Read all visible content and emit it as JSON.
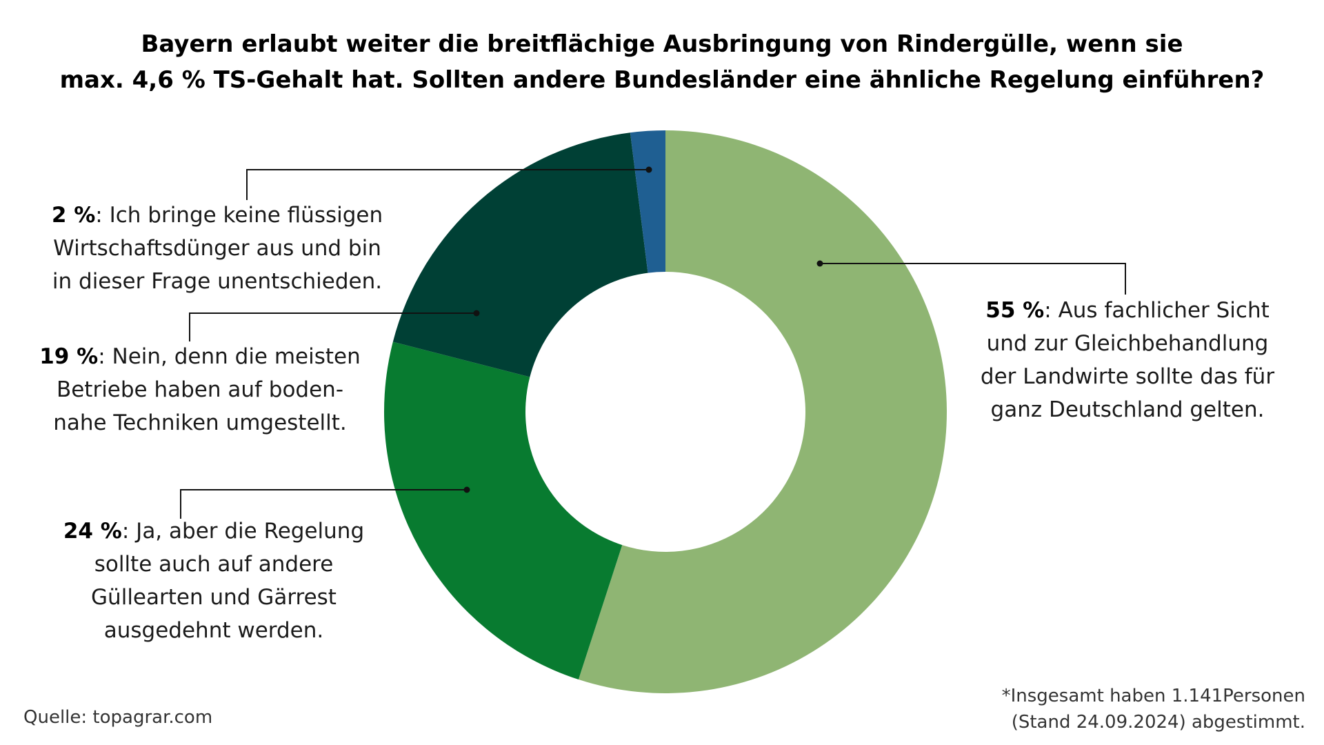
{
  "title": {
    "line1": "Bayern erlaubt weiter die breitflächige Ausbringung von Rindergülle, wenn sie",
    "line2": "max. 4,6 % TS-Gehalt hat. Sollten andere Bundesländer eine ähnliche Regelung einführen?"
  },
  "chart_data": {
    "type": "pie",
    "variant": "donut",
    "title": "Bayern erlaubt weiter die breitflächige Ausbringung von Rindergülle, wenn sie max. 4,6 % TS-Gehalt hat. Sollten andere Bundesländer eine ähnliche Regelung einführen?",
    "slices": [
      {
        "value": 55,
        "pct_label": "55 %",
        "color": "#8fb573",
        "text": ": Aus fachlicher Sicht und zur Gleichbehandlung der Landwirte sollte das für ganz Deutschland gelten.",
        "lines": [
          "Aus fachlicher Sicht",
          "und zur Gleichbehandlung",
          "der Landwirte sollte das für",
          "ganz Deutschland gelten."
        ]
      },
      {
        "value": 24,
        "pct_label": "24 %",
        "color": "#087b30",
        "text": ": Ja, aber die Regelung sollte auch auf andere Güllearten und Gärrest ausgedehnt werden.",
        "lines": [
          "Ja, aber die Regelung",
          "sollte auch auf andere",
          "Güllearten und Gärrest",
          "ausgedehnt werden."
        ]
      },
      {
        "value": 19,
        "pct_label": "19 %",
        "color": "#004035",
        "text": ": Nein, denn die meisten Betriebe haben auf boden-nahe Techniken umgestellt.",
        "lines": [
          "Nein, denn die meisten",
          "Betriebe haben auf boden-",
          "nahe Techniken umgestellt."
        ]
      },
      {
        "value": 2,
        "pct_label": "2 %",
        "color": "#1f5f92",
        "text": ": Ich bringe keine flüssigen Wirtschaftsdünger aus und bin in dieser Frage unentschieden.",
        "lines": [
          "Ich bringe keine flüssigen",
          "Wirtschaftsdünger aus und bin",
          "in dieser Frage unentschieden."
        ]
      }
    ]
  },
  "source": "Quelle: topagrar.com",
  "note": {
    "line1": "*Insgesamt haben 1.141Personen",
    "line2": "(Stand 24.09.2024) abgestimmt."
  }
}
